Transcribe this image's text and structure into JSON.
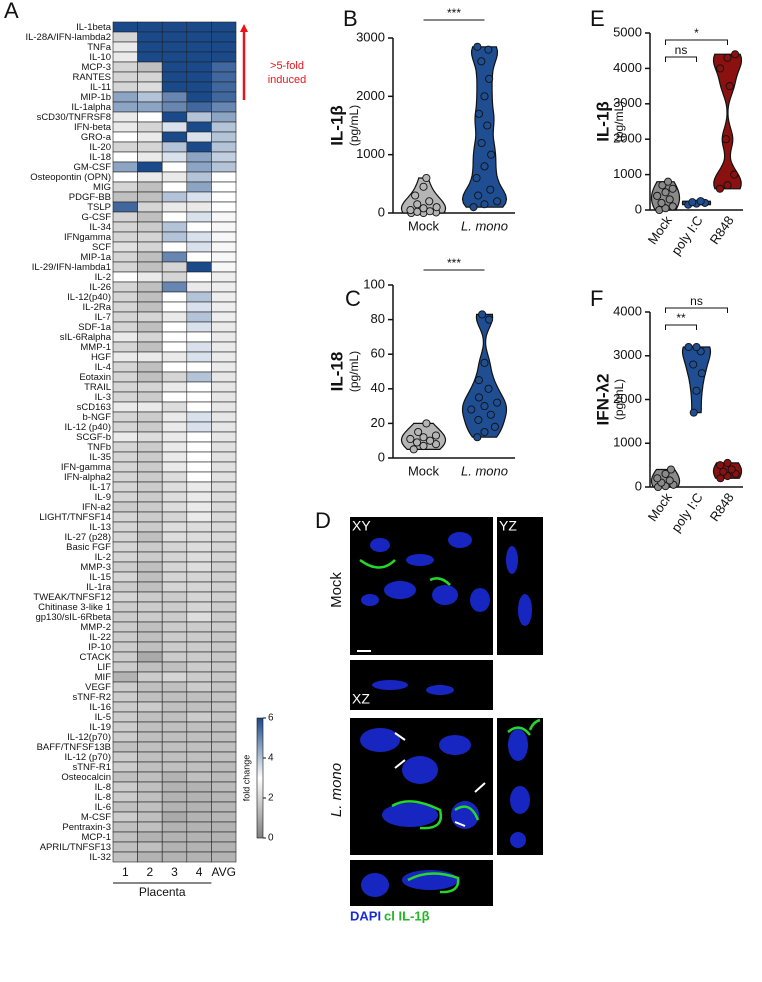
{
  "chart_data": [
    {
      "type": "heatmap",
      "panel": "A",
      "rows": [
        "IL-1beta",
        "IL-28A/IFN-lambda2",
        "TNFa",
        "IL-10",
        "MCP-3",
        "RANTES",
        "IL-11",
        "MIP-1b",
        "IL-1alpha",
        "sCD30/TNFRSF8",
        "IFN-beta",
        "GRO-a",
        "IL-20",
        "IL-18",
        "GM-CSF",
        "Osteopontin (OPN)",
        "MIG",
        "PDGF-BB",
        "TSLP",
        "G-CSF",
        "IL-34",
        "IFNgamma",
        "SCF",
        "MIP-1a",
        "IL-29/IFN-lambda1",
        "IL-2",
        "IL-26",
        "IL-12(p40)",
        "IL-2Ra",
        "IL-7",
        "SDF-1a",
        "sIL-6Ralpha",
        "MMP-1",
        "HGF",
        "IL-4",
        "Eotaxin",
        "TRAIL",
        "IL-3",
        "sCD163",
        "b-NGF",
        "IL-12 (p40)",
        "SCGF-b",
        "TNFb",
        "IL-35",
        "IFN-gamma",
        "IFN-alpha2",
        "IL-17",
        "IL-9",
        "IFN-a2",
        "LIGHT/TNFSF14",
        "IL-13",
        "IL-27 (p28)",
        "Basic FGF",
        "IL-2",
        "MMP-3",
        "IL-15",
        "IL-1ra",
        "TWEAK/TNFSF12",
        "Chitinase 3-like 1",
        "gp130/sIL-6Rbeta",
        "MMP-2",
        "IL-22",
        "IP-10",
        "CTACK",
        "LIF",
        "MIF",
        "VEGF",
        "sTNF-R2",
        "IL-16",
        "IL-5",
        "IL-19",
        "IL-12(p70)",
        "BAFF/TNFSF13B",
        "IL-12 (p70)",
        "sTNF-R1",
        "Osteocalcin",
        "IL-8",
        "IL-8",
        "IL-6",
        "M-CSF",
        "Pentraxin-3",
        "MCP-1",
        "APRIL/TNFSF13",
        "IL-32"
      ],
      "columns": [
        "1",
        "2",
        "3",
        "4",
        "AVG"
      ],
      "xlabel": "Placenta",
      "values": [
        [
          6,
          6,
          6,
          6,
          6
        ],
        [
          2,
          6,
          6,
          6,
          6
        ],
        [
          2.5,
          6,
          6,
          6,
          6
        ],
        [
          2.5,
          6,
          6,
          6,
          6
        ],
        [
          2,
          1.5,
          6,
          6,
          5.5
        ],
        [
          2,
          2,
          6,
          6,
          5.5
        ],
        [
          2,
          2.2,
          6,
          6,
          5.5
        ],
        [
          4.5,
          4,
          5,
          6,
          5.5
        ],
        [
          4.5,
          4.5,
          5,
          5.5,
          5
        ],
        [
          2.5,
          3,
          6,
          4,
          4.5
        ],
        [
          2.5,
          2,
          3.5,
          6,
          4
        ],
        [
          3,
          2.5,
          6,
          3.5,
          4
        ],
        [
          2,
          2,
          4,
          6,
          4
        ],
        [
          3,
          2.5,
          3.5,
          4.5,
          3.8
        ],
        [
          4.5,
          6,
          3,
          4.5,
          4
        ],
        [
          3,
          2.5,
          2.5,
          4,
          3
        ],
        [
          2,
          1.5,
          3,
          4.5,
          3
        ],
        [
          1.5,
          1.5,
          4,
          3.5,
          3
        ],
        [
          5.5,
          2,
          2.5,
          2.5,
          3
        ],
        [
          2,
          1.5,
          3,
          3.5,
          2.8
        ],
        [
          2,
          1.8,
          4,
          3,
          2.8
        ],
        [
          2,
          2,
          4,
          3.5,
          2.8
        ],
        [
          2.3,
          2,
          3,
          3.5,
          2.8
        ],
        [
          2,
          1.5,
          5,
          3,
          2.8
        ],
        [
          2,
          1.5,
          2,
          6,
          2.8
        ],
        [
          3,
          2.5,
          2,
          3,
          2.6
        ],
        [
          2,
          1.5,
          5,
          2.5,
          2.6
        ],
        [
          2,
          1.5,
          3,
          4,
          2.6
        ],
        [
          2,
          1.5,
          3,
          3.5,
          2.6
        ],
        [
          2,
          2,
          2.5,
          4,
          2.6
        ],
        [
          2,
          1.5,
          3,
          3.5,
          2.5
        ],
        [
          2.5,
          2,
          3,
          3,
          2.5
        ],
        [
          2,
          1.5,
          3,
          3.5,
          2.5
        ],
        [
          2.5,
          2.5,
          2.5,
          3.5,
          2.5
        ],
        [
          2,
          1.5,
          3,
          3,
          2.5
        ],
        [
          2,
          1.5,
          2,
          4,
          2.4
        ],
        [
          2,
          2,
          2.5,
          3,
          2.4
        ],
        [
          2,
          1.8,
          3,
          3,
          2.4
        ],
        [
          2.5,
          2.5,
          2.2,
          3,
          2.4
        ],
        [
          2,
          1.8,
          2.5,
          3.5,
          2.4
        ],
        [
          2,
          1.8,
          2.5,
          3.5,
          2.4
        ],
        [
          2.5,
          2.2,
          2.5,
          3,
          2.4
        ],
        [
          2,
          1.8,
          2.5,
          3,
          2.3
        ],
        [
          2,
          1.8,
          2.5,
          3,
          2.3
        ],
        [
          2,
          1.8,
          2.5,
          3,
          2.3
        ],
        [
          2,
          1.8,
          2.2,
          3,
          2.3
        ],
        [
          2,
          1.8,
          2.2,
          2.5,
          2.2
        ],
        [
          2,
          1.8,
          2.2,
          2.5,
          2.2
        ],
        [
          1.8,
          1.8,
          2.2,
          2.5,
          2.1
        ],
        [
          2,
          1.8,
          2,
          2.5,
          2.1
        ],
        [
          2,
          1.8,
          2.2,
          2.2,
          2.1
        ],
        [
          2,
          1.5,
          2.2,
          2.2,
          2.1
        ],
        [
          2,
          1.8,
          2,
          2.2,
          2
        ],
        [
          2,
          1.8,
          2,
          2.2,
          2
        ],
        [
          1.8,
          1.5,
          2,
          2.2,
          1.9
        ],
        [
          2,
          1.5,
          2,
          2,
          1.9
        ],
        [
          1.8,
          1.5,
          2,
          2,
          1.9
        ],
        [
          2,
          1.8,
          1.8,
          2,
          1.9
        ],
        [
          1.8,
          1.8,
          1.8,
          2,
          1.8
        ],
        [
          1.8,
          1.8,
          1.8,
          2.2,
          1.8
        ],
        [
          1.8,
          1.5,
          1.8,
          1.8,
          1.8
        ],
        [
          1.8,
          1.5,
          1.8,
          1.8,
          1.7
        ],
        [
          1.8,
          1.5,
          1.8,
          1.8,
          1.7
        ],
        [
          1.8,
          1,
          1.8,
          1.8,
          1.7
        ],
        [
          1.8,
          1.5,
          1.5,
          1.8,
          1.7
        ],
        [
          1.2,
          1.8,
          2,
          1.8,
          1.7
        ],
        [
          1.8,
          1.5,
          1.5,
          1.8,
          1.6
        ],
        [
          1.8,
          1.5,
          1.5,
          1.5,
          1.6
        ],
        [
          1.8,
          1.8,
          1.5,
          1.5,
          1.6
        ],
        [
          1.8,
          1.5,
          1.5,
          1.8,
          1.6
        ],
        [
          1.8,
          1.5,
          1.5,
          1.5,
          1.5
        ],
        [
          1.8,
          1.5,
          1.5,
          1.5,
          1.5
        ],
        [
          1.5,
          1.5,
          1.5,
          1.5,
          1.5
        ],
        [
          1.8,
          1.5,
          1.5,
          1.5,
          1.5
        ],
        [
          1.8,
          1.5,
          1.5,
          1.5,
          1.4
        ],
        [
          1.5,
          1.5,
          1.2,
          1.5,
          1.4
        ],
        [
          1.8,
          1.5,
          1.2,
          1.2,
          1.4
        ],
        [
          1.8,
          1.5,
          1.2,
          1.2,
          1.3
        ],
        [
          1.5,
          1.5,
          1.2,
          1.2,
          1.3
        ],
        [
          1.8,
          1.5,
          1,
          1.2,
          1.3
        ],
        [
          1.5,
          1.5,
          1.2,
          1.2,
          1.2
        ],
        [
          1.5,
          1.2,
          1.2,
          1.2,
          1.2
        ],
        [
          1.5,
          1.5,
          1.2,
          1.2,
          1.2
        ],
        [
          1.5,
          1.2,
          1.2,
          1.2,
          1.2
        ]
      ],
      "zlabel": "fold change",
      "zlim": [
        0,
        6
      ],
      "zticks": [
        0,
        2,
        4,
        6
      ],
      "colormap": [
        "#808080",
        "#ffffff",
        "#1b4a8a"
      ],
      "annotation": [
        ">5-fold",
        "induced"
      ],
      "annotation_color": "#e8141b"
    },
    {
      "type": "violin",
      "panel": "B",
      "ylabel": "IL-1β",
      "yunit": "(pg/mL)",
      "ylim": [
        0,
        3000
      ],
      "yticks": [
        0,
        1000,
        2000,
        3000
      ],
      "groups": [
        {
          "name": "Mock",
          "color": "#b5b5b5",
          "values": [
            0,
            0,
            10,
            20,
            30,
            50,
            80,
            100,
            150,
            200,
            300,
            450,
            600
          ]
        },
        {
          "name": "L. mono",
          "italic": true,
          "color": "#1f4f92",
          "values": [
            100,
            150,
            200,
            300,
            400,
            600,
            800,
            1000,
            1200,
            1500,
            1700,
            2000,
            2300,
            2600,
            2800,
            2850
          ]
        }
      ],
      "comparisons": [
        {
          "pair": [
            "Mock",
            "L. mono"
          ],
          "label": "***"
        }
      ]
    },
    {
      "type": "violin",
      "panel": "C",
      "ylabel": "IL-18",
      "yunit": "(pg/mL)",
      "ylim": [
        0,
        100
      ],
      "yticks": [
        0,
        20,
        40,
        60,
        80,
        100
      ],
      "groups": [
        {
          "name": "Mock",
          "color": "#b5b5b5",
          "values": [
            5,
            7,
            8,
            9,
            10,
            11,
            12,
            13,
            15,
            20
          ]
        },
        {
          "name": "L. mono",
          "italic": true,
          "color": "#1f4f92",
          "values": [
            12,
            15,
            18,
            22,
            25,
            28,
            30,
            32,
            35,
            40,
            45,
            55,
            80,
            83
          ]
        }
      ],
      "comparisons": [
        {
          "pair": [
            "Mock",
            "L. mono"
          ],
          "label": "***"
        }
      ]
    },
    {
      "type": "violin",
      "panel": "E",
      "ylabel": "IL-1β",
      "yunit": "(pg/mL)",
      "ylim": [
        0,
        5000
      ],
      "yticks": [
        0,
        1000,
        2000,
        3000,
        4000,
        5000
      ],
      "groups": [
        {
          "name": "Mock",
          "color": "#8a8a8a",
          "values": [
            0,
            50,
            100,
            200,
            300,
            400,
            500,
            600,
            700,
            800
          ]
        },
        {
          "name": "poly I:C",
          "color": "#1f4f92",
          "values": [
            150,
            180,
            200,
            220,
            250
          ]
        },
        {
          "name": "R848",
          "color": "#8b1010",
          "values": [
            600,
            700,
            1000,
            2000,
            3500,
            4000,
            4300,
            4400
          ]
        }
      ],
      "comparisons": [
        {
          "pair": [
            "Mock",
            "poly I:C"
          ],
          "label": "ns"
        },
        {
          "pair": [
            "Mock",
            "R848"
          ],
          "label": "*"
        }
      ]
    },
    {
      "type": "violin",
      "panel": "F",
      "ylabel": "IFN-λ2",
      "yunit": "(pg/mL)",
      "ylim": [
        0,
        4000
      ],
      "yticks": [
        0,
        1000,
        2000,
        3000,
        4000
      ],
      "groups": [
        {
          "name": "Mock",
          "color": "#8a8a8a",
          "values": [
            0,
            20,
            50,
            100,
            150,
            200,
            300,
            400
          ]
        },
        {
          "name": "poly I:C",
          "color": "#1f4f92",
          "values": [
            1700,
            2200,
            2600,
            2800,
            3100,
            3200,
            3200
          ]
        },
        {
          "name": "R848",
          "color": "#8b1010",
          "values": [
            200,
            250,
            300,
            350,
            400,
            500,
            550
          ]
        }
      ],
      "comparisons": [
        {
          "pair": [
            "Mock",
            "poly I:C"
          ],
          "label": "**"
        },
        {
          "pair": [
            "Mock",
            "R848"
          ],
          "label": "ns"
        }
      ]
    }
  ],
  "panel_d": {
    "panel": "D",
    "conditions": [
      "Mock",
      "L. mono"
    ],
    "views": [
      "XY",
      "YZ",
      "XZ"
    ],
    "stains": [
      "DAPI",
      "cl IL-1β"
    ]
  }
}
